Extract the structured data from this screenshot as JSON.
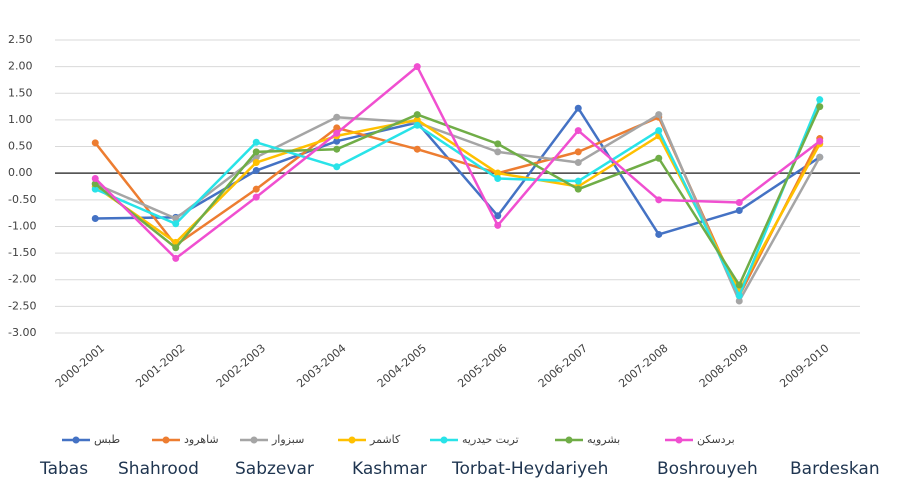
{
  "chart_data": {
    "type": "line",
    "categories": [
      "2000-2001",
      "2001-2002",
      "2002-2003",
      "2003-2004",
      "2004-2005",
      "2005-2006",
      "2006-2007",
      "2007-2008",
      "2008-2009",
      "2009-2010"
    ],
    "ylim": [
      -3,
      2.5
    ],
    "yticks": [
      {
        "value": 2.5,
        "label": "2.50"
      },
      {
        "value": 2,
        "label": "2.00"
      },
      {
        "value": 1.5,
        "label": "1.50"
      },
      {
        "value": 1,
        "label": "1.00"
      },
      {
        "value": 0.5,
        "label": "0.50"
      },
      {
        "value": 0,
        "label": "0.00"
      },
      {
        "value": -0.5,
        "label": "-0.50"
      },
      {
        "value": -1,
        "label": "-1.00"
      },
      {
        "value": -1.5,
        "label": "-1.50"
      },
      {
        "value": -2,
        "label": "-2.00"
      },
      {
        "value": -2.5,
        "label": "-2.50"
      },
      {
        "value": -3,
        "label": "-3.00"
      }
    ],
    "grid": true,
    "legend": "bottom",
    "series": [
      {
        "name": "طبس",
        "english_name": "Tabas",
        "color": "#4472c4",
        "values": [
          -0.85,
          -0.83,
          0.05,
          0.6,
          0.95,
          -0.8,
          1.22,
          -1.15,
          -0.7,
          0.3
        ]
      },
      {
        "name": "شاهرود",
        "english_name": "Shahrood",
        "color": "#ed7d31",
        "values": [
          0.57,
          -1.35,
          -0.3,
          0.85,
          0.45,
          0.0,
          0.4,
          1.05,
          -2.3,
          0.65
        ]
      },
      {
        "name": "سبزوار",
        "english_name": "Sabzevar",
        "color": "#a5a5a5",
        "values": [
          -0.2,
          -0.85,
          0.3,
          1.05,
          0.95,
          0.4,
          0.2,
          1.1,
          -2.4,
          0.3
        ]
      },
      {
        "name": "کاشمر",
        "english_name": "Kashmar",
        "color": "#ffc000",
        "values": [
          -0.25,
          -1.3,
          0.2,
          0.7,
          1.0,
          0.0,
          -0.25,
          0.7,
          -2.2,
          0.55
        ]
      },
      {
        "name": "تربت حیدریه",
        "english_name": "Torbat-Heydariyeh",
        "color": "#29e3e8",
        "values": [
          -0.3,
          -0.95,
          0.58,
          0.12,
          0.9,
          -0.1,
          -0.15,
          0.8,
          -2.3,
          1.38
        ]
      },
      {
        "name": "بشرویه",
        "english_name": "Boshrouyeh",
        "color": "#70ad47",
        "values": [
          -0.2,
          -1.4,
          0.4,
          0.45,
          1.1,
          0.55,
          -0.3,
          0.28,
          -2.1,
          1.25
        ]
      },
      {
        "name": "بردسکن",
        "english_name": "Bardeskan",
        "color": "#f04fd0",
        "values": [
          -0.1,
          -1.6,
          -0.45,
          0.75,
          2.0,
          -0.98,
          0.8,
          -0.5,
          -0.55,
          0.6
        ]
      }
    ]
  }
}
